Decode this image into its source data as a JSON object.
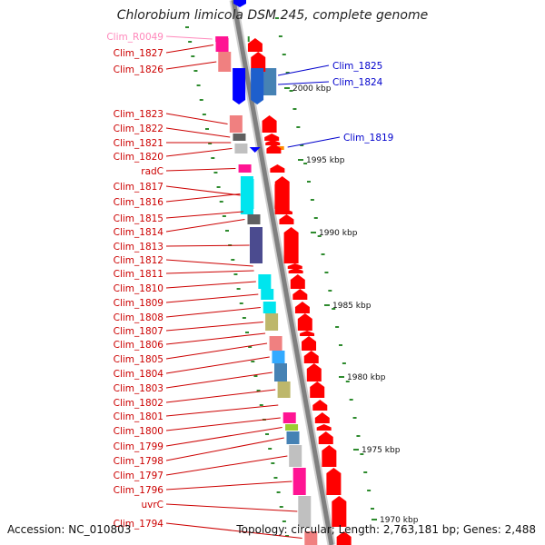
{
  "title": "Chlorobium limicola DSM 245, complete genome",
  "accession": "Accession: NC_010803",
  "topology": "Topology: circular; Length: 2,763,181 bp; Genes: 2,488",
  "colors": {
    "forward_arrow": "#ff0000",
    "reverse_arrow": "#0000ff",
    "reverse_label": "#0000cc",
    "forward_label": "#cc0000",
    "rna_label": "#ff88bb",
    "backbone": "#808080",
    "tick": "#2e8b2e"
  },
  "scale_labels": [
    "2000 kbp",
    "1995 kbp",
    "1990 kbp",
    "1985 kbp",
    "1980 kbp",
    "1975 kbp",
    "1970 kbp"
  ],
  "left_labels": [
    {
      "text": "Clim_R0049",
      "kind": "rna",
      "fill": "#ff1493"
    },
    {
      "text": "Clim_1827",
      "kind": "cds",
      "fill": "#ff1493"
    },
    {
      "text": "Clim_1826",
      "kind": "cds",
      "fill": "#f08080"
    },
    {
      "text": "Clim_1823",
      "kind": "cds",
      "fill": "#f08080"
    },
    {
      "text": "Clim_1822",
      "kind": "cds",
      "fill": "#606060"
    },
    {
      "text": "Clim_1821",
      "kind": "cds",
      "fill": "#ffffff"
    },
    {
      "text": "Clim_1820",
      "kind": "cds",
      "fill": "#c0c0c0"
    },
    {
      "text": "radC",
      "kind": "cds",
      "fill": "#ff1493"
    },
    {
      "text": "Clim_1817",
      "kind": "cds",
      "fill": "#00e5ee"
    },
    {
      "text": "Clim_1816",
      "kind": "cds",
      "fill": "#00e5ee"
    },
    {
      "text": "Clim_1815",
      "kind": "cds",
      "fill": "#ffffff"
    },
    {
      "text": "Clim_1814",
      "kind": "cds",
      "fill": "#606060"
    },
    {
      "text": "Clim_1813",
      "kind": "cds",
      "fill": "#4b4b8f"
    },
    {
      "text": "Clim_1812",
      "kind": "cds",
      "fill": "#ffffff"
    },
    {
      "text": "Clim_1811",
      "kind": "cds",
      "fill": "#ffffff"
    },
    {
      "text": "Clim_1810",
      "kind": "cds",
      "fill": "#00e5ee"
    },
    {
      "text": "Clim_1809",
      "kind": "cds",
      "fill": "#00e5ee"
    },
    {
      "text": "Clim_1808",
      "kind": "cds",
      "fill": "#00e5ee"
    },
    {
      "text": "Clim_1807",
      "kind": "cds",
      "fill": "#bdb76b"
    },
    {
      "text": "Clim_1806",
      "kind": "cds",
      "fill": "#ffffff"
    },
    {
      "text": "Clim_1805",
      "kind": "cds",
      "fill": "#f08080"
    },
    {
      "text": "Clim_1804",
      "kind": "cds",
      "fill": "#33aaff"
    },
    {
      "text": "Clim_1803",
      "kind": "cds",
      "fill": "#4682b4"
    },
    {
      "text": "Clim_1802",
      "kind": "cds",
      "fill": "#bdb76b"
    },
    {
      "text": "Clim_1801",
      "kind": "cds",
      "fill": "#ffffff"
    },
    {
      "text": "Clim_1800",
      "kind": "cds",
      "fill": "#ff1493"
    },
    {
      "text": "Clim_1799",
      "kind": "cds",
      "fill": "#9acd32"
    },
    {
      "text": "Clim_1798",
      "kind": "cds",
      "fill": "#4682b4"
    },
    {
      "text": "Clim_1797",
      "kind": "cds",
      "fill": "#c0c0c0"
    },
    {
      "text": "Clim_1796",
      "kind": "cds",
      "fill": "#ff1493"
    },
    {
      "text": "uvrC",
      "kind": "cds",
      "fill": "#c0c0c0"
    },
    {
      "text": "Clim_1794",
      "kind": "cds",
      "fill": "#f08080"
    }
  ],
  "right_labels": [
    {
      "text": "Clim_1825",
      "fill": "#0000ff"
    },
    {
      "text": "Clim_1824",
      "fill": "#4682b4"
    },
    {
      "text": "Clim_1819",
      "fill": "#ff8c00"
    }
  ]
}
